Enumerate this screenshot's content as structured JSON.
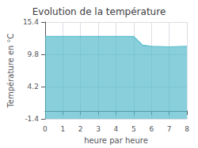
{
  "chart_data": {
    "type": "area",
    "title": "Evolution de la température",
    "xlabel": "heure par heure",
    "ylabel": "Température en °C",
    "x": [
      0,
      5,
      5,
      5.5,
      6,
      6,
      7,
      8
    ],
    "values": [
      12.9,
      12.9,
      12.9,
      11.4,
      11.2,
      11.2,
      11.1,
      11.2
    ],
    "color": "#55bbcc",
    "xlim": [
      0,
      8
    ],
    "xticks": [
      0,
      1,
      2,
      3,
      4,
      5,
      6,
      7,
      8
    ],
    "ylim": [
      -1.4,
      15.4
    ],
    "yticks": [
      -1.4,
      4.2,
      9.8,
      15.4
    ],
    "grid": true
  }
}
